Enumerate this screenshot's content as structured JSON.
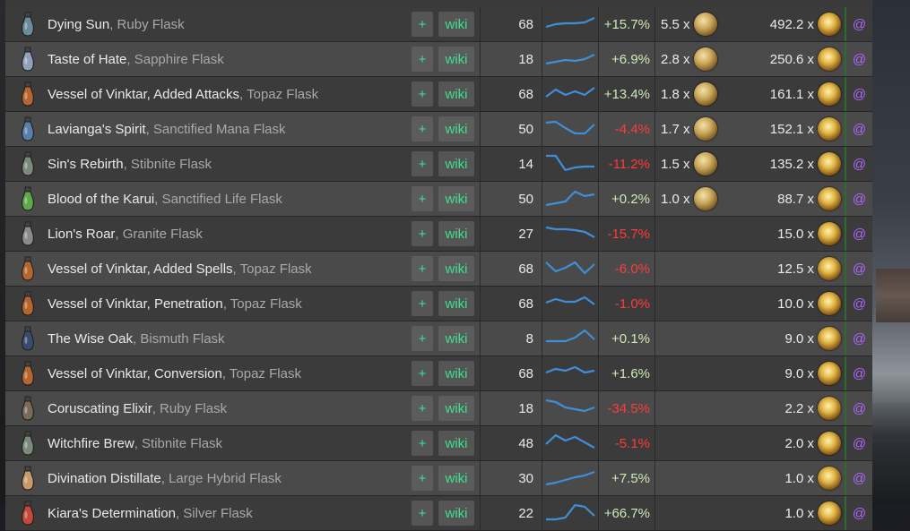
{
  "colors": {
    "plus_wiki": "#3ee08f",
    "positive": "#cfe9b7",
    "negative": "#ff3b3b",
    "at_link": "#b066ff",
    "row_odd": "#3b3b3b",
    "row_even": "#4a4a4a"
  },
  "icons": {
    "flask": "flask-icon",
    "exalted": "exalted-orb-icon",
    "chaos": "chaos-orb-icon"
  },
  "rows": [
    {
      "name": "Dying Sun",
      "base": ", Ruby Flask",
      "plus": "+",
      "wiki": "wiki",
      "level": "68",
      "change": "+15.7%",
      "change_dir": "pos",
      "ex": "5.5 x",
      "chaos": "492.2 x",
      "at": "@",
      "trend": [
        14,
        11,
        10,
        10,
        9,
        4
      ],
      "flask_color": "#6b8a9a"
    },
    {
      "name": "Taste of Hate",
      "base": ", Sapphire Flask",
      "plus": "+",
      "wiki": "wiki",
      "level": "18",
      "change": "+6.9%",
      "change_dir": "pos",
      "ex": "2.8 x",
      "chaos": "250.6 x",
      "at": "@",
      "trend": [
        16,
        14,
        12,
        13,
        11,
        6
      ],
      "flask_color": "#8fa0b8"
    },
    {
      "name": "Vessel of Vinktar, Added Attacks",
      "base": ", Topaz Flask",
      "plus": "+",
      "wiki": "wiki",
      "level": "68",
      "change": "+13.4%",
      "change_dir": "pos",
      "ex": "1.8 x",
      "chaos": "161.1 x",
      "at": "@",
      "trend": [
        14,
        6,
        12,
        8,
        12,
        4
      ],
      "flask_color": "#b5652e"
    },
    {
      "name": "Lavianga's Spirit",
      "base": ", Sanctified Mana Flask",
      "plus": "+",
      "wiki": "wiki",
      "level": "50",
      "change": "-4.4%",
      "change_dir": "neg",
      "ex": "1.7 x",
      "chaos": "152.1 x",
      "at": "@",
      "trend": [
        4,
        3,
        10,
        16,
        16,
        6
      ],
      "flask_color": "#5a7fa8"
    },
    {
      "name": "Sin's Rebirth",
      "base": ", Stibnite Flask",
      "plus": "+",
      "wiki": "wiki",
      "level": "14",
      "change": "-11.2%",
      "change_dir": "neg",
      "ex": "1.5 x",
      "chaos": "135.2 x",
      "at": "@",
      "trend": [
        2,
        2,
        18,
        15,
        14,
        14
      ],
      "flask_color": "#7a8a7a"
    },
    {
      "name": "Blood of the Karui",
      "base": ", Sanctified Life Flask",
      "plus": "+",
      "wiki": "wiki",
      "level": "50",
      "change": "+0.2%",
      "change_dir": "pos",
      "ex": "1.0 x",
      "chaos": "88.7 x",
      "at": "@",
      "trend": [
        18,
        16,
        14,
        3,
        8,
        6
      ],
      "flask_color": "#5fa84a"
    },
    {
      "name": "Lion's Roar",
      "base": ", Granite Flask",
      "plus": "+",
      "wiki": "wiki",
      "level": "27",
      "change": "-15.7%",
      "change_dir": "neg",
      "ex": "",
      "chaos": "15.0 x",
      "at": "@",
      "trend": [
        4,
        6,
        6,
        7,
        9,
        15
      ],
      "flask_color": "#8a8a8a"
    },
    {
      "name": "Vessel of Vinktar, Added Spells",
      "base": ", Topaz Flask",
      "plus": "+",
      "wiki": "wiki",
      "level": "68",
      "change": "-6.0%",
      "change_dir": "neg",
      "ex": "",
      "chaos": "12.5 x",
      "at": "@",
      "trend": [
        4,
        14,
        10,
        4,
        16,
        6
      ],
      "flask_color": "#b5652e"
    },
    {
      "name": "Vessel of Vinktar, Penetration",
      "base": ", Topaz Flask",
      "plus": "+",
      "wiki": "wiki",
      "level": "68",
      "change": "-1.0%",
      "change_dir": "neg",
      "ex": "",
      "chaos": "10.0 x",
      "at": "@",
      "trend": [
        10,
        6,
        9,
        9,
        4,
        12
      ],
      "flask_color": "#b5652e"
    },
    {
      "name": "The Wise Oak",
      "base": ", Bismuth Flask",
      "plus": "+",
      "wiki": "wiki",
      "level": "8",
      "change": "+0.1%",
      "change_dir": "pos",
      "ex": "",
      "chaos": "9.0 x",
      "at": "@",
      "trend": [
        14,
        14,
        14,
        10,
        2,
        12
      ],
      "flask_color": "#3a4a6a"
    },
    {
      "name": "Vessel of Vinktar, Conversion",
      "base": ", Topaz Flask",
      "plus": "+",
      "wiki": "wiki",
      "level": "68",
      "change": "+1.6%",
      "change_dir": "pos",
      "ex": "",
      "chaos": "9.0 x",
      "at": "@",
      "trend": [
        10,
        6,
        8,
        4,
        10,
        8
      ],
      "flask_color": "#b5652e"
    },
    {
      "name": "Coruscating Elixir",
      "base": ", Ruby Flask",
      "plus": "+",
      "wiki": "wiki",
      "level": "18",
      "change": "-34.5%",
      "change_dir": "neg",
      "ex": "",
      "chaos": "2.2 x",
      "at": "@",
      "trend": [
        2,
        4,
        10,
        12,
        14,
        10
      ],
      "flask_color": "#7a6a5a"
    },
    {
      "name": "Witchfire Brew",
      "base": ", Stibnite Flask",
      "plus": "+",
      "wiki": "wiki",
      "level": "48",
      "change": "-5.1%",
      "change_dir": "neg",
      "ex": "",
      "chaos": "2.0 x",
      "at": "@",
      "trend": [
        12,
        2,
        8,
        4,
        10,
        16
      ],
      "flask_color": "#7a8a7a"
    },
    {
      "name": "Divination Distillate",
      "base": ", Large Hybrid Flask",
      "plus": "+",
      "wiki": "wiki",
      "level": "30",
      "change": "+7.5%",
      "change_dir": "pos",
      "ex": "",
      "chaos": "1.0 x",
      "at": "@",
      "trend": [
        18,
        16,
        13,
        10,
        8,
        4
      ],
      "flask_color": "#c79a6a"
    },
    {
      "name": "Kiara's Determination",
      "base": ", Silver Flask",
      "plus": "+",
      "wiki": "wiki",
      "level": "22",
      "change": "+66.7%",
      "change_dir": "pos",
      "ex": "",
      "chaos": "1.0 x",
      "at": "@",
      "trend": [
        18,
        18,
        16,
        2,
        4,
        14
      ],
      "flask_color": "#c24a3a"
    }
  ]
}
